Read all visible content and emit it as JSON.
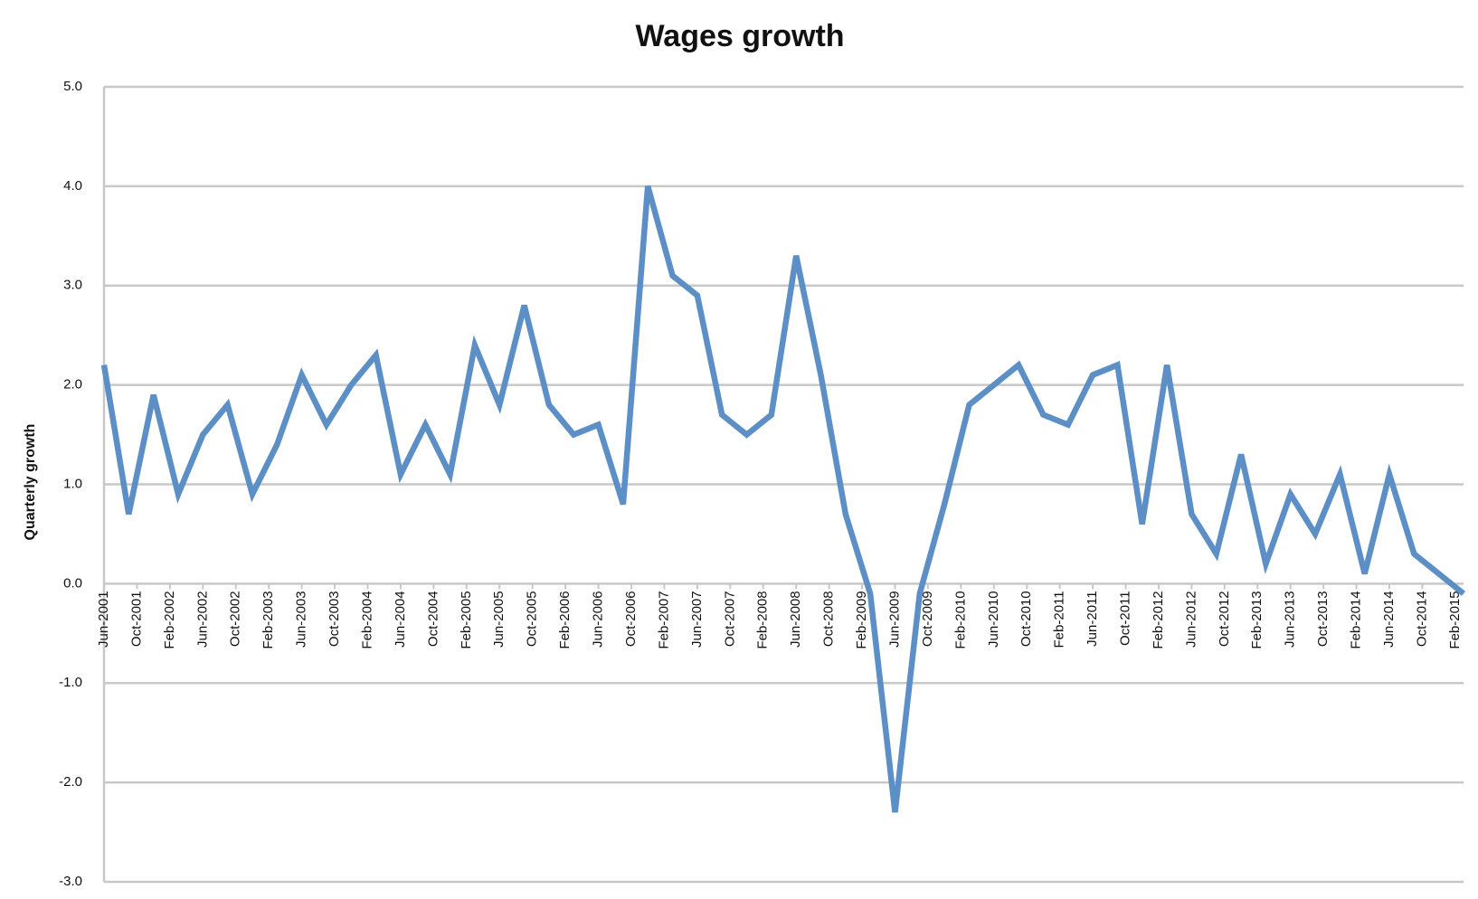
{
  "chart_data": {
    "type": "line",
    "title": "Wages growth",
    "y_label": "Quarterly  growth",
    "x": [
      "2001-06",
      "2001-09",
      "2001-12",
      "2002-03",
      "2002-06",
      "2002-09",
      "2002-12",
      "2003-03",
      "2003-06",
      "2003-09",
      "2003-12",
      "2004-03",
      "2004-06",
      "2004-09",
      "2004-12",
      "2005-03",
      "2005-06",
      "2005-09",
      "2005-12",
      "2006-03",
      "2006-06",
      "2006-09",
      "2006-12",
      "2007-03",
      "2007-06",
      "2007-09",
      "2007-12",
      "2008-03",
      "2008-06",
      "2008-09",
      "2008-12",
      "2009-03",
      "2009-06",
      "2009-09",
      "2009-12",
      "2010-03",
      "2010-06",
      "2010-09",
      "2010-12",
      "2011-03",
      "2011-06",
      "2011-09",
      "2011-12",
      "2012-03",
      "2012-06",
      "2012-09",
      "2012-12",
      "2013-03",
      "2013-06",
      "2013-09",
      "2013-12",
      "2014-03",
      "2014-06",
      "2014-09",
      "2014-12",
      "2015-03"
    ],
    "series": [
      {
        "name": "Wages growth",
        "color": "#5b8fc6",
        "values": [
          2.2,
          0.7,
          1.9,
          0.9,
          1.5,
          1.8,
          0.9,
          1.4,
          2.1,
          1.6,
          2.0,
          2.3,
          1.1,
          1.6,
          1.1,
          2.4,
          1.8,
          2.8,
          1.8,
          1.5,
          1.6,
          0.8,
          4.0,
          3.1,
          2.9,
          1.7,
          1.5,
          1.7,
          3.3,
          2.1,
          0.7,
          -0.1,
          -2.3,
          -0.1,
          0.8,
          1.8,
          2.0,
          2.2,
          1.7,
          1.6,
          2.1,
          2.2,
          0.6,
          2.2,
          0.7,
          0.3,
          1.3,
          0.2,
          0.9,
          0.5,
          1.1,
          0.1,
          1.1,
          0.3,
          0.1,
          -0.1
        ]
      }
    ],
    "xlim": [
      "2001-06",
      "2015-03"
    ],
    "xticks": [
      {
        "value": "2001-06",
        "label": "Jun-2001"
      },
      {
        "value": "2001-10",
        "label": "Oct-2001"
      },
      {
        "value": "2002-02",
        "label": "Feb-2002"
      },
      {
        "value": "2002-06",
        "label": "Jun-2002"
      },
      {
        "value": "2002-10",
        "label": "Oct-2002"
      },
      {
        "value": "2003-02",
        "label": "Feb-2003"
      },
      {
        "value": "2003-06",
        "label": "Jun-2003"
      },
      {
        "value": "2003-10",
        "label": "Oct-2003"
      },
      {
        "value": "2004-02",
        "label": "Feb-2004"
      },
      {
        "value": "2004-06",
        "label": "Jun-2004"
      },
      {
        "value": "2004-10",
        "label": "Oct-2004"
      },
      {
        "value": "2005-02",
        "label": "Feb-2005"
      },
      {
        "value": "2005-06",
        "label": "Jun-2005"
      },
      {
        "value": "2005-10",
        "label": "Oct-2005"
      },
      {
        "value": "2006-02",
        "label": "Feb-2006"
      },
      {
        "value": "2006-06",
        "label": "Jun-2006"
      },
      {
        "value": "2006-10",
        "label": "Oct-2006"
      },
      {
        "value": "2007-02",
        "label": "Feb-2007"
      },
      {
        "value": "2007-06",
        "label": "Jun-2007"
      },
      {
        "value": "2007-10",
        "label": "Oct-2007"
      },
      {
        "value": "2008-02",
        "label": "Feb-2008"
      },
      {
        "value": "2008-06",
        "label": "Jun-2008"
      },
      {
        "value": "2008-10",
        "label": "Oct-2008"
      },
      {
        "value": "2009-02",
        "label": "Feb-2009"
      },
      {
        "value": "2009-06",
        "label": "Jun-2009"
      },
      {
        "value": "2009-10",
        "label": "Oct-2009"
      },
      {
        "value": "2010-02",
        "label": "Feb-2010"
      },
      {
        "value": "2010-06",
        "label": "Jun-2010"
      },
      {
        "value": "2010-10",
        "label": "Oct-2010"
      },
      {
        "value": "2011-02",
        "label": "Feb-2011"
      },
      {
        "value": "2011-06",
        "label": "Jun-2011"
      },
      {
        "value": "2011-10",
        "label": "Oct-2011"
      },
      {
        "value": "2012-02",
        "label": "Feb-2012"
      },
      {
        "value": "2012-06",
        "label": "Jun-2012"
      },
      {
        "value": "2012-10",
        "label": "Oct-2012"
      },
      {
        "value": "2013-02",
        "label": "Feb-2013"
      },
      {
        "value": "2013-06",
        "label": "Jun-2013"
      },
      {
        "value": "2013-10",
        "label": "Oct-2013"
      },
      {
        "value": "2014-02",
        "label": "Feb-2014"
      },
      {
        "value": "2014-06",
        "label": "Jun-2014"
      },
      {
        "value": "2014-10",
        "label": "Oct-2014"
      },
      {
        "value": "2015-02",
        "label": "Feb-2015"
      }
    ],
    "ylim": [
      -3,
      5
    ],
    "yticks": [
      {
        "value": -3,
        "label": "-3.0"
      },
      {
        "value": -2,
        "label": "-2.0"
      },
      {
        "value": -1,
        "label": "-1.0"
      },
      {
        "value": 0,
        "label": "0.0"
      },
      {
        "value": 1,
        "label": "1.0"
      },
      {
        "value": 2,
        "label": "2.0"
      },
      {
        "value": 3,
        "label": "3.0"
      },
      {
        "value": 4,
        "label": "4.0"
      },
      {
        "value": 5,
        "label": "5.0"
      }
    ],
    "grid": true
  }
}
